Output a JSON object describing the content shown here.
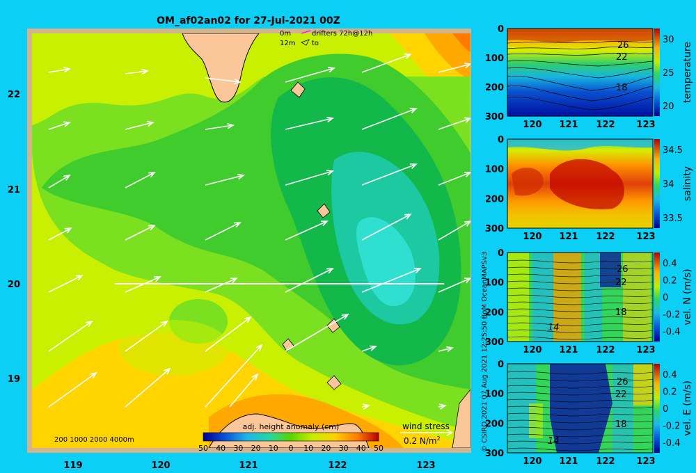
{
  "title": "OM_af02an02 for 27-Jul-2021 00Z",
  "map": {
    "lon_ticks": [
      "119",
      "120",
      "121",
      "122",
      "123"
    ],
    "lat_ticks": [
      "22",
      "21",
      "20",
      "19"
    ],
    "xlim": [
      118.5,
      123.5
    ],
    "ylim": [
      18.3,
      22.7
    ],
    "legend_drifters": {
      "line1_left": "0m",
      "line1_right": "drifters 72h@12h",
      "line2_left": "12m",
      "line2_right": "to"
    },
    "depth_legend": "200  1000  2000  4000m",
    "colorbar_title": "adj. height anomaly (cm)",
    "colorbar_ticks": [
      "50",
      "40",
      "30",
      "20",
      "10",
      "0",
      "10",
      "20",
      "30",
      "40",
      "50"
    ],
    "wind_stress_label": "wind stress",
    "wind_stress_scale": "0.2 N/m",
    "wind_stress_sup": "2"
  },
  "sections": [
    {
      "ylabel": "temperature",
      "cb_ticks": [
        "30",
        "25",
        "20"
      ],
      "contour_labels": [
        "26",
        "22",
        "18"
      ]
    },
    {
      "ylabel": "salinity",
      "cb_ticks": [
        "34.5",
        "34",
        "33.5"
      ],
      "contour_labels": []
    },
    {
      "ylabel": "vel. N (m/s)",
      "cb_ticks": [
        "0.4",
        "0.2",
        "0",
        "-0.2",
        "-0.4"
      ],
      "contour_labels": [
        "26",
        "22",
        "18",
        "14"
      ]
    },
    {
      "ylabel": "vel. E (m/s)",
      "cb_ticks": [
        "0.4",
        "0.2",
        "0",
        "-0.2",
        "-0.4"
      ],
      "contour_labels": [
        "26",
        "22",
        "18",
        "14"
      ]
    }
  ],
  "section_depth_ticks": [
    "0",
    "100",
    "200",
    "300"
  ],
  "section_lon_ticks": [
    "120",
    "121",
    "122",
    "123"
  ],
  "credit": "© CSIRO 2021    07 Aug 2021 12:25:50 BoM OceanMAPSv3",
  "chart_data": {
    "type": "heatmap",
    "title": "OM_af02an02 for 27-Jul-2021 00Z",
    "xlabel": "",
    "ylabel": "",
    "x_range": [
      118.5,
      123.5
    ],
    "y_range": [
      18.3,
      22.7
    ],
    "z_label": "adj. height anomaly (cm)",
    "z_range": [
      -50,
      50
    ],
    "section_line": {
      "lat": 20.0,
      "lon": [
        119.5,
        123.2
      ]
    },
    "sections": [
      {
        "name": "temperature",
        "depth_range": [
          0,
          300
        ],
        "lon_range": [
          119.5,
          123.3
        ],
        "value_range": [
          16,
          31
        ]
      },
      {
        "name": "salinity",
        "depth_range": [
          0,
          300
        ],
        "lon_range": [
          119.5,
          123.3
        ],
        "value_range": [
          33.4,
          34.9
        ]
      },
      {
        "name": "vel. N (m/s)",
        "depth_range": [
          0,
          300
        ],
        "lon_range": [
          119.5,
          123.3
        ],
        "value_range": [
          -0.4,
          0.4
        ]
      },
      {
        "name": "vel. E (m/s)",
        "depth_range": [
          0,
          300
        ],
        "lon_range": [
          119.5,
          123.3
        ],
        "value_range": [
          -0.4,
          0.4
        ]
      }
    ]
  }
}
